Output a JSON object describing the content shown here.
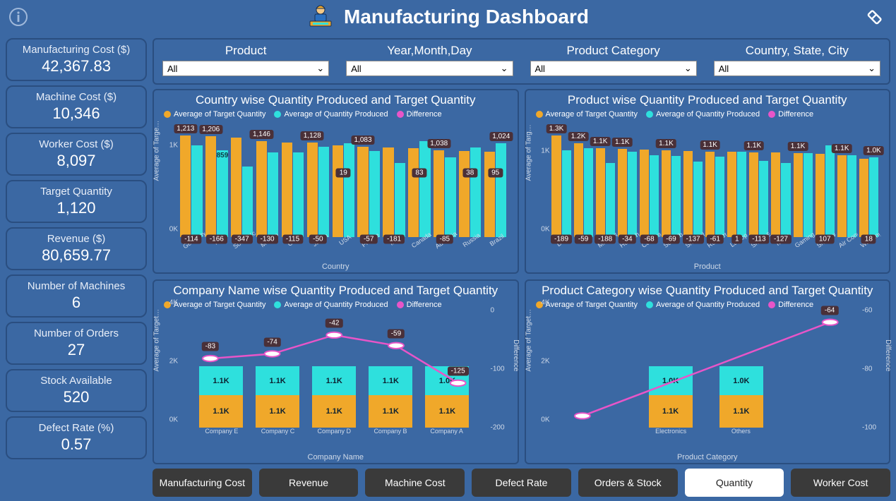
{
  "colors": {
    "target": "#f0a82a",
    "produced": "#2ee0dd",
    "difference": "#e855c8",
    "badge_bg": "#4a3038",
    "page_bg": "#3b68a3",
    "border": "#2a4e80",
    "tab_bg": "#3a3a3a",
    "tab_active_bg": "#ffffff"
  },
  "header": {
    "title": "Manufacturing Dashboard"
  },
  "kpis": [
    {
      "label": "Manufacturing Cost ($)",
      "value": "42,367.83"
    },
    {
      "label": "Machine Cost ($)",
      "value": "10,346"
    },
    {
      "label": "Worker Cost ($)",
      "value": "8,097"
    },
    {
      "label": "Target Quantity",
      "value": "1,120"
    },
    {
      "label": "Revenue ($)",
      "value": "80,659.77"
    },
    {
      "label": "Number of Machines",
      "value": "6"
    },
    {
      "label": "Number of Orders",
      "value": "27"
    },
    {
      "label": "Stock Available",
      "value": "520"
    },
    {
      "label": "Defect Rate (%)",
      "value": "0.57"
    }
  ],
  "filters": [
    {
      "label": "Product",
      "value": "All"
    },
    {
      "label": "Year,Month,Day",
      "value": "All"
    },
    {
      "label": "Product Category",
      "value": "All"
    },
    {
      "label": "Country, State, City",
      "value": "All"
    }
  ],
  "legend": {
    "target": "Average of Target Quantity",
    "produced": "Average of Quantity Produced",
    "difference": "Difference"
  },
  "chart1": {
    "title": "Country wise Quantity Produced and Target Quantity",
    "y_label": "Average of Targe…",
    "x_title": "Country",
    "ymax": 1400,
    "yticks": [
      {
        "v": 0,
        "t": "0K"
      },
      {
        "v": 1000,
        "t": "1K"
      }
    ],
    "data": [
      {
        "cat": "Germany",
        "target": 1213,
        "diff": -114,
        "target_lbl": "1,213"
      },
      {
        "cat": "Italy",
        "target": 1206,
        "prod_lbl": "859",
        "diff": -166,
        "target_lbl": "1,206"
      },
      {
        "cat": "South Korea",
        "target": 1190,
        "diff": -347,
        "target_lbl": ""
      },
      {
        "cat": "Mexico",
        "target": 1146,
        "diff": -130,
        "target_lbl": "1,146"
      },
      {
        "cat": "China",
        "target": 1130,
        "diff": -115,
        "target_lbl": ""
      },
      {
        "cat": "Japan",
        "target": 1128,
        "diff": -50,
        "target_lbl": "1,128"
      },
      {
        "cat": "USA",
        "target": 1100,
        "diff": 19,
        "diff_high": true,
        "target_lbl": ""
      },
      {
        "cat": "France",
        "target": 1083,
        "diff": -57,
        "target_lbl": "1,083"
      },
      {
        "cat": "India",
        "target": 1070,
        "diff": -181,
        "target_lbl": ""
      },
      {
        "cat": "Canada",
        "target": 1060,
        "diff": 83,
        "diff_high": true,
        "target_lbl": ""
      },
      {
        "cat": "Australia",
        "target": 1038,
        "diff": -85,
        "target_lbl": "1,038"
      },
      {
        "cat": "Russia",
        "target": 1030,
        "diff": 38,
        "diff_high": true,
        "target_lbl": ""
      },
      {
        "cat": "Brazil",
        "target": 1024,
        "diff": 95,
        "diff_high": true,
        "target_lbl": "1,024"
      }
    ]
  },
  "chart2": {
    "title": "Product wise Quantity Produced and Target Quantity",
    "y_label": "Average of Targ…",
    "x_title": "Product",
    "ymax": 1500,
    "yticks": [
      {
        "v": 0,
        "t": "0K"
      },
      {
        "v": 1000,
        "t": "1K"
      }
    ],
    "data": [
      {
        "cat": "Drone",
        "target_lbl": "1.3K",
        "target": 1300,
        "diff": -189
      },
      {
        "cat": "TV",
        "target_lbl": "1.2K",
        "target": 1200,
        "diff": -59
      },
      {
        "cat": "Microwave O…",
        "target_lbl": "1.1K",
        "target": 1140,
        "diff": -188
      },
      {
        "cat": "Headphones",
        "target_lbl": "1.1K",
        "target": 1130,
        "diff": -34
      },
      {
        "cat": "Camera",
        "target_lbl": "",
        "target": 1120,
        "diff": -68
      },
      {
        "cat": "Soundbar",
        "target_lbl": "1.1K",
        "target": 1110,
        "diff": -69
      },
      {
        "cat": "Smartphone",
        "target_lbl": "",
        "target": 1100,
        "diff": -137
      },
      {
        "cat": "Refrigerator",
        "target_lbl": "1.1K",
        "target": 1095,
        "diff": -61
      },
      {
        "cat": "Laptop",
        "target_lbl": "",
        "target": 1090,
        "diff": 1
      },
      {
        "cat": "Smart Speaker",
        "target_lbl": "1.1K",
        "target": 1085,
        "diff": -113
      },
      {
        "cat": "Tablet",
        "target_lbl": "",
        "target": 1080,
        "diff": -127
      },
      {
        "cat": "Gaming Cons…",
        "target_lbl": "1.1K",
        "target": 1075,
        "diff": 0,
        "no_diff": true
      },
      {
        "cat": "Smartwatch",
        "target_lbl": "",
        "target": 1070,
        "diff": 107
      },
      {
        "cat": "Air Conditioner",
        "target_lbl": "1.1K",
        "target": 1050,
        "diff": 0,
        "no_diff": true
      },
      {
        "cat": "Washing Mac…",
        "target_lbl": "1.0K",
        "target": 1000,
        "diff": 18
      }
    ]
  },
  "chart3": {
    "title": "Company Name wise Quantity Produced and Target Quantity",
    "y_label": "Average of Target…",
    "y2_label": "Difference",
    "x_title": "Company Name",
    "ymax": 4000,
    "yticks": [
      {
        "v": 0,
        "t": "0K"
      },
      {
        "v": 2000,
        "t": "2K"
      },
      {
        "v": 4000,
        "t": "4K"
      }
    ],
    "y2ticks": [
      {
        "p": 0,
        "t": "0"
      },
      {
        "p": 50,
        "t": "-100"
      },
      {
        "p": 100,
        "t": "-200"
      }
    ],
    "data": [
      {
        "cat": "Company E",
        "a": "1.1K",
        "b": "1.1K",
        "diff": -83,
        "diff_p": 41
      },
      {
        "cat": "Company C",
        "a": "1.1K",
        "b": "1.1K",
        "diff": -74,
        "diff_p": 37
      },
      {
        "cat": "Company D",
        "a": "1.1K",
        "b": "1.1K",
        "diff": -42,
        "diff_p": 21
      },
      {
        "cat": "Company B",
        "a": "1.1K",
        "b": "1.1K",
        "diff": -59,
        "diff_p": 30
      },
      {
        "cat": "Company A",
        "a": "1.1K",
        "b": "1.0K",
        "diff": -125,
        "diff_p": 62
      }
    ]
  },
  "chart4": {
    "title": "Product Category wise Quantity Produced and Target Quantity",
    "y_label": "Average of Target…",
    "y2_label": "Difference",
    "x_title": "Product Category",
    "ymax": 4000,
    "yticks": [
      {
        "v": 0,
        "t": "0K"
      },
      {
        "v": 2000,
        "t": "2K"
      },
      {
        "v": 4000,
        "t": "4K"
      }
    ],
    "y2ticks": [
      {
        "p": 0,
        "t": "-60"
      },
      {
        "p": 50,
        "t": "-80"
      },
      {
        "p": 100,
        "t": "-100"
      }
    ],
    "data": [
      {
        "cat": "Electronics",
        "a": "1.1K",
        "b": "1.0K",
        "diff": 0,
        "no_diff": true,
        "diff_p": 90
      },
      {
        "cat": "Others",
        "a": "1.1K",
        "b": "1.0K",
        "diff": -64,
        "diff_p": 10
      }
    ]
  },
  "tabs": [
    {
      "label": "Manufacturing Cost",
      "active": false
    },
    {
      "label": "Revenue",
      "active": false
    },
    {
      "label": "Machine Cost",
      "active": false
    },
    {
      "label": "Defect Rate",
      "active": false
    },
    {
      "label": "Orders & Stock",
      "active": false
    },
    {
      "label": "Quantity",
      "active": true
    },
    {
      "label": "Worker Cost",
      "active": false
    }
  ]
}
